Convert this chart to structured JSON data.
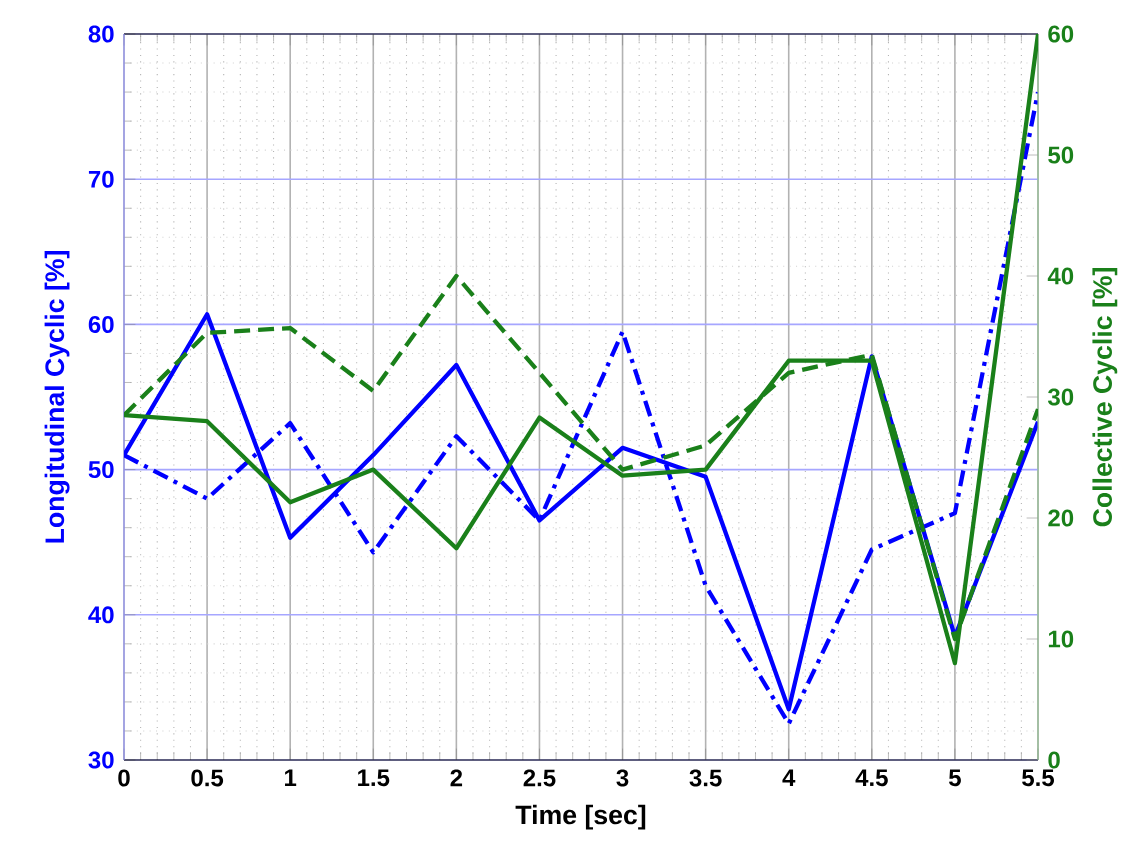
{
  "chart_data": {
    "type": "line",
    "xlabel": "Time [sec]",
    "ylabel": "Longitudinal Cyclic [%]",
    "y2label": "Collective Cyclic [%]",
    "x": [
      0,
      0.5,
      1,
      1.5,
      2,
      2.5,
      3,
      3.5,
      4,
      4.5,
      5,
      5.5
    ],
    "xlim": [
      0,
      5.5
    ],
    "xticks": [
      0,
      0.5,
      1,
      1.5,
      2,
      2.5,
      3,
      3.5,
      4,
      4.5,
      5,
      5.5
    ],
    "ylim": [
      30,
      80
    ],
    "yticks": [
      30,
      40,
      50,
      60,
      70,
      80
    ],
    "y2lim": [
      0,
      60
    ],
    "y2ticks": [
      0,
      10,
      20,
      30,
      40,
      50,
      60
    ],
    "grid": true,
    "marker": "none",
    "series": [
      {
        "color": "#0000ff",
        "line_style": "dashdot",
        "values": [
          51,
          48,
          53.2,
          44.3,
          52.3,
          46.5,
          59.5,
          42,
          32.5,
          44.5,
          47,
          76
        ]
      },
      {
        "color": "#0000ff",
        "line_style": "solid",
        "values": [
          51,
          60.7,
          45.3,
          51,
          57.2,
          46.5,
          51.5,
          49.5,
          33.5,
          57.8,
          38.5,
          53.3
        ]
      },
      {
        "color": "#1a801a",
        "line_style": "dashed",
        "axis": "y2",
        "values": [
          28.5,
          35.3,
          35.7,
          30.5,
          40,
          32,
          24,
          26,
          32,
          33.5,
          10,
          29
        ]
      },
      {
        "color": "#1a801a",
        "line_style": "solid",
        "axis": "y2",
        "values": [
          28.5,
          28,
          21.3,
          24,
          17.5,
          28.3,
          23.5,
          24,
          33,
          33,
          8,
          60
        ]
      }
    ]
  }
}
